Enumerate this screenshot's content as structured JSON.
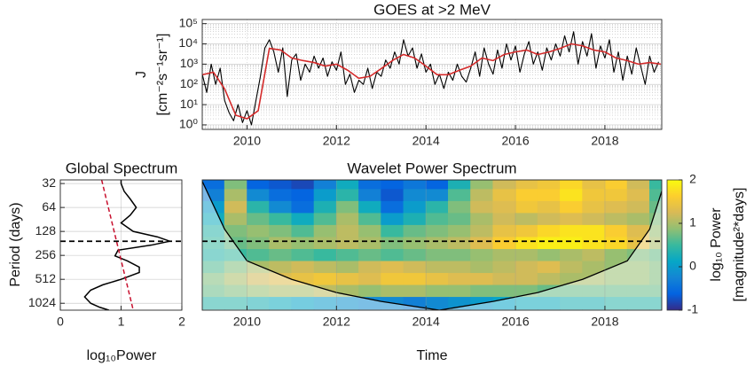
{
  "chart_data": [
    {
      "type": "line",
      "title": "GOES at >2 MeV",
      "ylabel": [
        "J",
        "[cm⁻²s⁻¹sr⁻¹]"
      ],
      "ylog": true,
      "grid": true,
      "xlim": [
        2009,
        2019.27
      ],
      "xticks": [
        2010,
        2012,
        2014,
        2016,
        2018
      ],
      "ylim": [
        0.6,
        160000
      ],
      "yticks": [
        {
          "value": 1,
          "label": "10⁰"
        },
        {
          "value": 10,
          "label": "10¹"
        },
        {
          "value": 100,
          "label": "10²"
        },
        {
          "value": 1000,
          "label": "10³"
        },
        {
          "value": 10000,
          "label": "10⁴"
        },
        {
          "value": 100000,
          "label": "10⁵"
        }
      ],
      "series": [
        {
          "color": "#000000",
          "x": [
            2009.0,
            2009.1,
            2009.2,
            2009.3,
            2009.4,
            2009.5,
            2009.6,
            2009.7,
            2009.8,
            2009.9,
            2010.0,
            2010.1,
            2010.2,
            2010.3,
            2010.4,
            2010.5,
            2010.6,
            2010.7,
            2010.8,
            2010.9,
            2011.0,
            2011.1,
            2011.2,
            2011.3,
            2011.4,
            2011.5,
            2011.6,
            2011.7,
            2011.8,
            2011.9,
            2012.0,
            2012.1,
            2012.2,
            2012.3,
            2012.4,
            2012.5,
            2012.6,
            2012.7,
            2012.8,
            2012.9,
            2013.0,
            2013.1,
            2013.2,
            2013.3,
            2013.4,
            2013.5,
            2013.6,
            2013.7,
            2013.8,
            2013.9,
            2014.0,
            2014.1,
            2014.2,
            2014.3,
            2014.4,
            2014.5,
            2014.6,
            2014.7,
            2014.8,
            2014.9,
            2015.0,
            2015.1,
            2015.2,
            2015.3,
            2015.4,
            2015.5,
            2015.6,
            2015.7,
            2015.8,
            2015.9,
            2016.0,
            2016.1,
            2016.2,
            2016.3,
            2016.4,
            2016.5,
            2016.6,
            2016.7,
            2016.8,
            2016.9,
            2017.0,
            2017.1,
            2017.2,
            2017.3,
            2017.4,
            2017.5,
            2017.6,
            2017.7,
            2017.8,
            2017.9,
            2018.0,
            2018.1,
            2018.2,
            2018.3,
            2018.4,
            2018.5,
            2018.6,
            2018.7,
            2018.8,
            2018.9,
            2019.0,
            2019.1,
            2019.2
          ],
          "values": [
            320,
            40,
            1000,
            100,
            630,
            16,
            4,
            1.6,
            10,
            1.3,
            5,
            1,
            16,
            250,
            6300,
            16000,
            4000,
            400,
            6300,
            25,
            1600,
            3200,
            160,
            1000,
            400,
            2500,
            630,
            2000,
            250,
            1300,
            500,
            4000,
            100,
            320,
            40,
            160,
            100,
            630,
            63,
            400,
            250,
            1600,
            630,
            4000,
            1000,
            16000,
            2500,
            6300,
            630,
            3200,
            400,
            1000,
            100,
            320,
            63,
            400,
            160,
            1000,
            250,
            130,
            630,
            4000,
            250,
            6300,
            1000,
            320,
            5000,
            630,
            10000,
            1600,
            7900,
            400,
            3200,
            13000,
            1000,
            4000,
            500,
            6300,
            1600,
            10000,
            2500,
            25000,
            4000,
            40000,
            1000,
            13000,
            2500,
            32000,
            630,
            7900,
            2000,
            16000,
            400,
            4000,
            160,
            2500,
            320,
            6300,
            790,
            100,
            2500,
            400,
            1300
          ]
        },
        {
          "color": "#d42a2a",
          "x": [
            2009.0,
            2009.25,
            2009.5,
            2009.75,
            2010.0,
            2010.25,
            2010.5,
            2010.75,
            2011.0,
            2011.25,
            2011.5,
            2011.75,
            2012.0,
            2012.25,
            2012.5,
            2012.75,
            2013.0,
            2013.25,
            2013.5,
            2013.75,
            2014.0,
            2014.25,
            2014.5,
            2014.75,
            2015.0,
            2015.25,
            2015.5,
            2015.75,
            2016.0,
            2016.25,
            2016.5,
            2016.75,
            2017.0,
            2017.25,
            2017.5,
            2017.75,
            2018.0,
            2018.25,
            2018.5,
            2018.75,
            2019.0,
            2019.25
          ],
          "values": [
            300,
            400,
            60,
            3,
            2,
            5,
            6000,
            5000,
            2000,
            1500,
            1200,
            800,
            1000,
            500,
            200,
            250,
            600,
            1500,
            3000,
            2000,
            800,
            300,
            300,
            500,
            800,
            2000,
            1500,
            3000,
            4000,
            5000,
            3000,
            4000,
            6000,
            10000,
            8000,
            5000,
            4000,
            2000,
            1500,
            1000,
            1200,
            1000
          ]
        }
      ]
    },
    {
      "type": "spectrum",
      "title": "Global Spectrum",
      "xlabel": "log₁₀Power",
      "ylabel": "Period (days)",
      "ylog": true,
      "grid": true,
      "xlim": [
        0,
        2
      ],
      "xticks": [
        0,
        1,
        2
      ],
      "ylim": [
        1250,
        28.8
      ],
      "yticks": [
        32,
        64,
        128,
        256,
        512,
        1024
      ],
      "reference_period": 170,
      "series": [
        {
          "color": "#000000",
          "dash": false,
          "x": [
            1.0,
            1.0,
            1.05,
            1.15,
            1.25,
            1.15,
            1.0,
            1.2,
            1.6,
            1.8,
            1.5,
            0.95,
            0.9,
            1.1,
            1.3,
            1.3,
            1.0,
            0.7,
            0.5,
            0.4,
            0.5,
            0.65,
            0.8
          ],
          "values": [
            28.8,
            32,
            40,
            50,
            64,
            80,
            100,
            128,
            150,
            170,
            190,
            220,
            260,
            300,
            360,
            420,
            512,
            600,
            700,
            850,
            1024,
            1150,
            1250
          ]
        },
        {
          "color": "#c8102e",
          "dash": true,
          "x": [
            0.68,
            1.2
          ],
          "values": [
            28.8,
            1250
          ]
        }
      ]
    },
    {
      "type": "heatmap",
      "title": "Wavelet Power Spectrum",
      "xlabel": "Time",
      "ylog": true,
      "grid": true,
      "xlim": [
        2009,
        2019.27
      ],
      "xticks": [
        2010,
        2012,
        2014,
        2016,
        2018
      ],
      "ylim": [
        1250,
        28.8
      ],
      "reference_period": 170,
      "x": [
        2009.25,
        2009.75,
        2010.25,
        2010.75,
        2011.25,
        2011.75,
        2012.25,
        2012.75,
        2013.25,
        2013.75,
        2014.25,
        2014.75,
        2015.25,
        2015.75,
        2016.25,
        2016.75,
        2017.25,
        2017.75,
        2018.25,
        2018.75,
        2019.25
      ],
      "y": [
        32,
        45,
        64,
        90,
        128,
        181,
        256,
        362,
        512,
        724,
        1024
      ],
      "z": [
        [
          -0.5,
          0.8,
          -0.6,
          -0.7,
          -0.8,
          -0.3,
          0.2,
          -0.5,
          -0.6,
          -0.4,
          -0.6,
          0.3,
          0.9,
          1.2,
          1.4,
          1.5,
          1.7,
          1.4,
          1.6,
          1.2,
          0.5
        ],
        [
          -0.3,
          1.0,
          -0.2,
          -0.5,
          -0.6,
          0.0,
          0.4,
          -0.3,
          -0.7,
          -0.2,
          -0.2,
          0.6,
          1.1,
          1.4,
          1.6,
          1.6,
          1.8,
          1.5,
          1.5,
          1.3,
          0.6
        ],
        [
          0.0,
          1.2,
          0.4,
          -0.2,
          -0.5,
          0.3,
          0.8,
          0.2,
          -0.5,
          0.0,
          0.4,
          0.8,
          1.2,
          1.3,
          1.5,
          1.4,
          1.6,
          1.4,
          1.3,
          1.2,
          0.7
        ],
        [
          0.2,
          1.0,
          0.7,
          0.5,
          0.2,
          0.6,
          1.0,
          0.6,
          0.0,
          0.3,
          0.6,
          0.7,
          1.0,
          1.2,
          1.1,
          1.2,
          1.3,
          1.2,
          1.1,
          1.0,
          0.8
        ],
        [
          0.4,
          0.8,
          0.9,
          0.8,
          0.6,
          0.9,
          1.1,
          0.9,
          0.5,
          0.7,
          0.8,
          0.9,
          1.1,
          1.4,
          1.5,
          1.7,
          1.8,
          1.8,
          1.6,
          1.3,
          0.9
        ],
        [
          0.5,
          0.7,
          0.8,
          1.0,
          0.9,
          1.0,
          1.1,
          1.0,
          0.8,
          0.9,
          1.0,
          1.1,
          1.3,
          1.6,
          1.8,
          1.9,
          1.9,
          1.8,
          1.7,
          1.4,
          1.0
        ],
        [
          0.4,
          0.5,
          0.6,
          0.7,
          0.6,
          0.5,
          0.6,
          0.7,
          0.6,
          0.7,
          0.8,
          0.8,
          0.9,
          1.0,
          1.0,
          0.9,
          1.0,
          1.1,
          0.9,
          0.8,
          0.7
        ],
        [
          0.6,
          0.8,
          1.0,
          1.1,
          1.2,
          1.1,
          1.0,
          1.2,
          1.3,
          1.2,
          1.1,
          1.1,
          1.0,
          1.1,
          1.2,
          1.3,
          1.1,
          1.0,
          0.9,
          0.9,
          0.8
        ],
        [
          0.8,
          1.0,
          1.2,
          1.3,
          1.4,
          1.5,
          1.4,
          1.3,
          1.5,
          1.5,
          1.4,
          1.3,
          1.3,
          1.2,
          1.2,
          1.1,
          1.0,
          1.0,
          0.9,
          0.9,
          0.8
        ],
        [
          0.7,
          0.8,
          0.9,
          1.0,
          1.0,
          1.1,
          1.0,
          0.9,
          1.0,
          1.0,
          0.9,
          0.9,
          0.8,
          0.8,
          0.8,
          0.7,
          0.7,
          0.7,
          0.7,
          0.7,
          0.7
        ],
        [
          0.4,
          0.4,
          0.3,
          0.2,
          0.1,
          0.0,
          -0.1,
          -0.2,
          -0.2,
          -0.3,
          -0.2,
          -0.1,
          0.0,
          0.1,
          0.2,
          0.2,
          0.3,
          0.3,
          0.4,
          0.4,
          0.4
        ]
      ],
      "coi": {
        "x": [
          2009.0,
          2009.5,
          2010.0,
          2011.0,
          2012.0,
          2013.0,
          2014.3,
          2015.5,
          2016.5,
          2017.5,
          2018.5,
          2019.0,
          2019.27
        ],
        "y": [
          30,
          120,
          300,
          512,
          750,
          970,
          1250,
          970,
          750,
          512,
          300,
          120,
          40
        ]
      },
      "zlim": [
        -1,
        2
      ],
      "zticks": [
        -1,
        0,
        1,
        2
      ],
      "zlabel": [
        "log₁₀ Power",
        "[magnitude²*days]"
      ]
    }
  ]
}
